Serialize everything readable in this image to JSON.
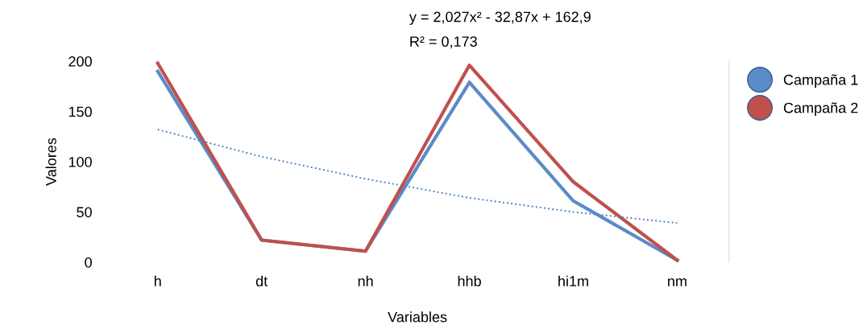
{
  "chart_data": {
    "type": "line",
    "xlabel": "Variables",
    "ylabel": "Valores",
    "categories": [
      "h",
      "dt",
      "nh",
      "hhb",
      "hi1m",
      "nm"
    ],
    "series": [
      {
        "name": "Campaña 1",
        "color": "#5b8bc9",
        "values": [
          190,
          22,
          11,
          179,
          61,
          2
        ]
      },
      {
        "name": "Campaña 2",
        "color": "#c0504d",
        "values": [
          198,
          22,
          11,
          196,
          80,
          2
        ]
      },
      {
        "type": "line",
        "line_style": "dotted",
        "color": "#4f81bd",
        "values": [
          132,
          105,
          83,
          64,
          50,
          39
        ]
      }
    ],
    "ylim": [
      0,
      200
    ],
    "yticks": [
      0,
      50,
      100,
      150,
      200
    ],
    "annotations": [
      "y = 2,027x² - 32,87x + 162,9",
      "R² = 0,173"
    ],
    "grid": false,
    "legend": "right",
    "marker": "none"
  }
}
